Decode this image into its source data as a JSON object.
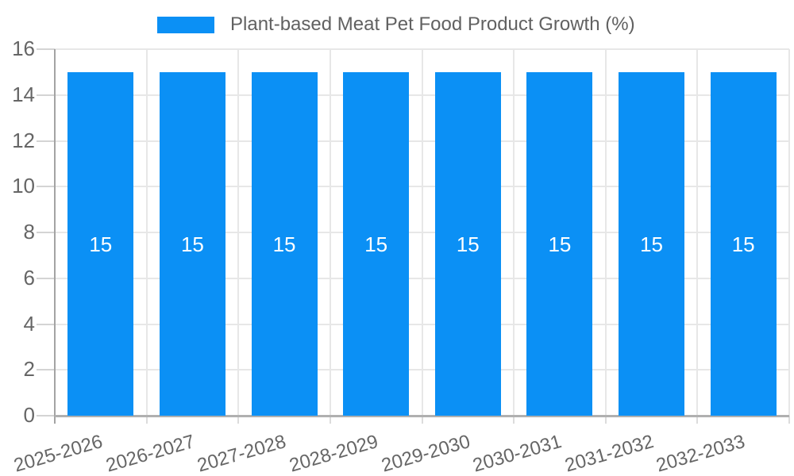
{
  "legend": {
    "label": "Plant-based Meat Pet Food Product Growth (%)"
  },
  "chart_data": {
    "type": "bar",
    "title": "Plant-based Meat Pet Food Product Growth (%)",
    "categories": [
      "2025-2026",
      "2026-2027",
      "2027-2028",
      "2028-2029",
      "2029-2030",
      "2030-2031",
      "2031-2032",
      "2032-2033"
    ],
    "values": [
      15,
      15,
      15,
      15,
      15,
      15,
      15,
      15
    ],
    "series_name": "Plant-based Meat Pet Food Product Growth (%)",
    "xlabel": "",
    "ylabel": "",
    "ylim": [
      0,
      16
    ],
    "ytick_step": 2,
    "yticks": [
      0,
      2,
      4,
      6,
      8,
      10,
      12,
      14,
      16
    ],
    "grid": true,
    "legend_position": "top",
    "bar_color": "#0b90f5",
    "value_label_color": "#ffffff",
    "axis_label_color": "#666666"
  }
}
